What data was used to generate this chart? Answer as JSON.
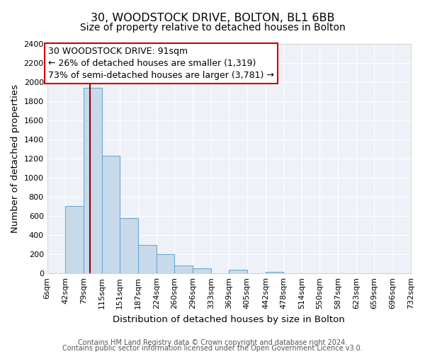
{
  "title": "30, WOODSTOCK DRIVE, BOLTON, BL1 6BB",
  "subtitle": "Size of property relative to detached houses in Bolton",
  "xlabel": "Distribution of detached houses by size in Bolton",
  "ylabel": "Number of detached properties",
  "bar_color": "#c8daea",
  "bar_edge_color": "#6aaad4",
  "background_color": "#eef2f8",
  "axes_background": "#eef2f8",
  "grid_color": "#ffffff",
  "bin_edges": [
    6,
    42,
    79,
    115,
    151,
    187,
    224,
    260,
    296,
    333,
    369,
    405,
    442,
    478,
    514,
    550,
    587,
    623,
    659,
    696,
    732
  ],
  "bin_labels": [
    "6sqm",
    "42sqm",
    "79sqm",
    "115sqm",
    "151sqm",
    "187sqm",
    "224sqm",
    "260sqm",
    "296sqm",
    "333sqm",
    "369sqm",
    "405sqm",
    "442sqm",
    "478sqm",
    "514sqm",
    "550sqm",
    "587sqm",
    "623sqm",
    "659sqm",
    "696sqm",
    "732sqm"
  ],
  "bar_heights": [
    0,
    700,
    1940,
    1230,
    580,
    300,
    200,
    85,
    50,
    0,
    40,
    0,
    15,
    0,
    0,
    0,
    0,
    0,
    0,
    0
  ],
  "ylim": [
    0,
    2400
  ],
  "yticks": [
    0,
    200,
    400,
    600,
    800,
    1000,
    1200,
    1400,
    1600,
    1800,
    2000,
    2200,
    2400
  ],
  "property_line_x": 91,
  "property_line_color": "#990000",
  "annotation_line1": "30 WOODSTOCK DRIVE: 91sqm",
  "annotation_line2": "← 26% of detached houses are smaller (1,319)",
  "annotation_line3": "73% of semi-detached houses are larger (3,781) →",
  "annotation_box_facecolor": "#ffffff",
  "annotation_box_edgecolor": "#cc0000",
  "footer_line1": "Contains HM Land Registry data © Crown copyright and database right 2024.",
  "footer_line2": "Contains public sector information licensed under the Open Government Licence v3.0.",
  "title_fontsize": 11.5,
  "subtitle_fontsize": 10,
  "axis_label_fontsize": 9.5,
  "tick_fontsize": 8,
  "annotation_fontsize": 9,
  "footer_fontsize": 7
}
